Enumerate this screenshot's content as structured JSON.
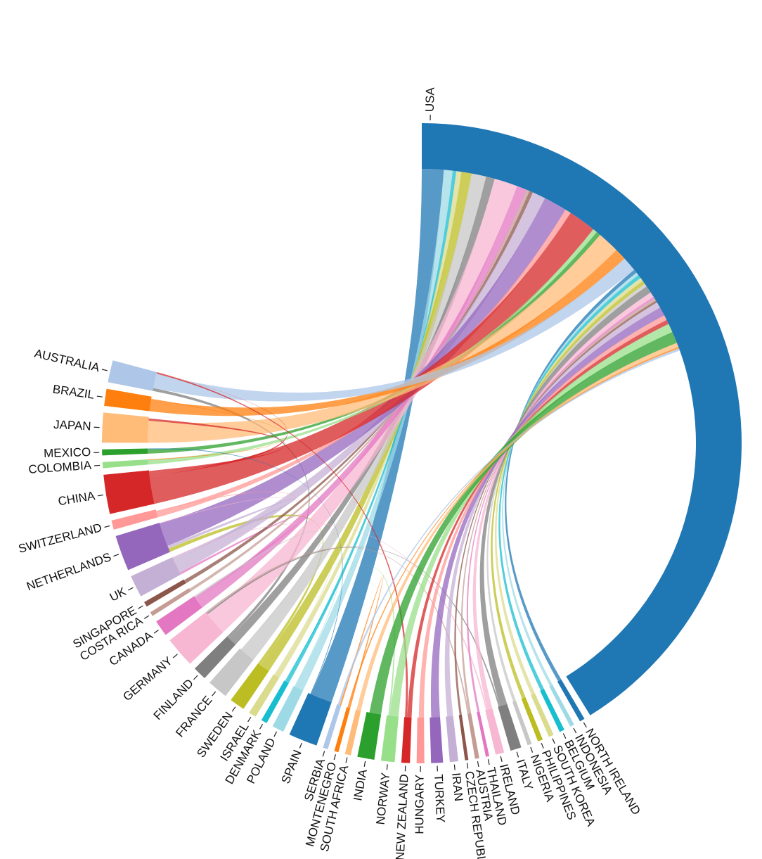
{
  "chart_data": {
    "type": "chord",
    "title": "",
    "colors": {
      "USA": "#1f77b4",
      "NORTH IRELAND": "#1f77b4",
      "INDONESIA": "#9edae5",
      "BELGIUM": "#17becf",
      "SOUTH KOREA": "#dbdb8d",
      "PHILIPPINES": "#bcbd22",
      "NIGERIA": "#c7c7c7",
      "ITALY": "#7f7f7f",
      "IRELAND": "#f7b6d2",
      "THAILAND": "#e377c2",
      "AUSTRIA": "#c49c94",
      "CZECH REPUBLIC": "#8c564b",
      "IRAN": "#c5b0d5",
      "TURKEY": "#9467bd",
      "HUNGARY": "#ff9896",
      "NEW ZEALAND": "#d62728",
      "NORWAY": "#98df8a",
      "INDIA": "#2ca02c",
      "SOUTH AFRICA": "#ffbb78",
      "MONTENEGRO": "#ff7f0e",
      "SERBIA": "#aec7e8",
      "SPAIN": "#1f77b4",
      "POLAND": "#9edae5",
      "DENMARK": "#17becf",
      "ISRAEL": "#dbdb8d",
      "SWEDEN": "#bcbd22",
      "FRANCE": "#c7c7c7",
      "FINLAND": "#7f7f7f",
      "GERMANY": "#f7b6d2",
      "CANADA": "#e377c2",
      "COSTA RICA": "#c49c94",
      "SINGAPORE": "#8c564b",
      "UK": "#c5b0d5",
      "NETHERLANDS": "#9467bd",
      "SWITZERLAND": "#ff9896",
      "CHINA": "#d62728",
      "COLOMBIA": "#98df8a",
      "MEXICO": "#2ca02c",
      "JAPAN": "#ffbb78",
      "BRAZIL": "#ff7f0e",
      "AUSTRALIA": "#aec7e8"
    },
    "countries": [
      {
        "name": "USA",
        "weight": 96.0
      },
      {
        "name": "NORTH IRELAND",
        "weight": 0.6
      },
      {
        "name": "INDONESIA",
        "weight": 0.5
      },
      {
        "name": "BELGIUM",
        "weight": 0.6
      },
      {
        "name": "SOUTH KOREA",
        "weight": 0.6
      },
      {
        "name": "PHILIPPINES",
        "weight": 0.6
      },
      {
        "name": "NIGERIA",
        "weight": 0.5
      },
      {
        "name": "ITALY",
        "weight": 1.3
      },
      {
        "name": "IRELAND",
        "weight": 1.0
      },
      {
        "name": "THAILAND",
        "weight": 0.4
      },
      {
        "name": "AUSTRIA",
        "weight": 0.5
      },
      {
        "name": "CZECH REPUBLIC",
        "weight": 0.4
      },
      {
        "name": "IRAN",
        "weight": 1.0
      },
      {
        "name": "TURKEY",
        "weight": 1.4
      },
      {
        "name": "HUNGARY",
        "weight": 0.9
      },
      {
        "name": "NEW ZEALAND",
        "weight": 1.0
      },
      {
        "name": "NORWAY",
        "weight": 1.6
      },
      {
        "name": "INDIA",
        "weight": 2.0
      },
      {
        "name": "SOUTH AFRICA",
        "weight": 0.7
      },
      {
        "name": "MONTENEGRO",
        "weight": 0.5
      },
      {
        "name": "SERBIA",
        "weight": 0.6
      },
      {
        "name": "SPAIN",
        "weight": 3.4
      },
      {
        "name": "POLAND",
        "weight": 1.4
      },
      {
        "name": "DENMARK",
        "weight": 0.7
      },
      {
        "name": "ISRAEL",
        "weight": 0.9
      },
      {
        "name": "SWEDEN",
        "weight": 1.8
      },
      {
        "name": "FRANCE",
        "weight": 2.4
      },
      {
        "name": "FINLAND",
        "weight": 1.6
      },
      {
        "name": "GERMANY",
        "weight": 3.6
      },
      {
        "name": "CANADA",
        "weight": 1.9
      },
      {
        "name": "COSTA RICA",
        "weight": 0.5
      },
      {
        "name": "SINGAPORE",
        "weight": 0.6
      },
      {
        "name": "UK",
        "weight": 2.6
      },
      {
        "name": "NETHERLANDS",
        "weight": 4.2
      },
      {
        "name": "SWITZERLAND",
        "weight": 1.1
      },
      {
        "name": "CHINA",
        "weight": 4.6
      },
      {
        "name": "COLOMBIA",
        "weight": 0.7
      },
      {
        "name": "MEXICO",
        "weight": 0.7
      },
      {
        "name": "JAPAN",
        "weight": 3.5
      },
      {
        "name": "BRAZIL",
        "weight": 2.0
      },
      {
        "name": "AUSTRALIA",
        "weight": 2.6
      }
    ],
    "links": [
      {
        "source": "SPAIN",
        "target": "USA",
        "value": 3.0
      },
      {
        "source": "POLAND",
        "target": "USA",
        "value": 1.2
      },
      {
        "source": "DENMARK",
        "target": "USA",
        "value": 0.5
      },
      {
        "source": "ISRAEL",
        "target": "USA",
        "value": 0.7
      },
      {
        "source": "SWEDEN",
        "target": "USA",
        "value": 1.4
      },
      {
        "source": "SWEDEN",
        "target": "NETHERLANDS",
        "value": 0.5
      },
      {
        "source": "FRANCE",
        "target": "USA",
        "value": 2.0
      },
      {
        "source": "FINLAND",
        "target": "USA",
        "value": 1.2
      },
      {
        "source": "FINLAND",
        "target": "AUSTRALIA",
        "value": 0.4
      },
      {
        "source": "GERMANY",
        "target": "USA",
        "value": 3.2
      },
      {
        "source": "CANADA",
        "target": "USA",
        "value": 1.4
      },
      {
        "source": "CANADA",
        "target": "UK",
        "value": 0.3
      },
      {
        "source": "COSTA RICA",
        "target": "USA",
        "value": 0.4
      },
      {
        "source": "SINGAPORE",
        "target": "USA",
        "value": 0.5
      },
      {
        "source": "UK",
        "target": "USA",
        "value": 1.8
      },
      {
        "source": "UK",
        "target": "NETHERLANDS",
        "value": 0.4
      },
      {
        "source": "NETHERLANDS",
        "target": "USA",
        "value": 3.2
      },
      {
        "source": "SWITZERLAND",
        "target": "USA",
        "value": 0.8
      },
      {
        "source": "CHINA",
        "target": "USA",
        "value": 3.8
      },
      {
        "source": "COLOMBIA",
        "target": "USA",
        "value": 0.6
      },
      {
        "source": "MEXICO",
        "target": "USA",
        "value": 0.6
      },
      {
        "source": "JAPAN",
        "target": "USA",
        "value": 3.0
      },
      {
        "source": "BRAZIL",
        "target": "USA",
        "value": 1.6
      },
      {
        "source": "AUSTRALIA",
        "target": "USA",
        "value": 2.0
      },
      {
        "source": "NORTH IRELAND",
        "target": "USA",
        "value": 0.5
      },
      {
        "source": "INDONESIA",
        "target": "USA",
        "value": 0.4
      },
      {
        "source": "BELGIUM",
        "target": "USA",
        "value": 0.5
      },
      {
        "source": "SOUTH KOREA",
        "target": "USA",
        "value": 0.5
      },
      {
        "source": "PHILIPPINES",
        "target": "USA",
        "value": 0.5
      },
      {
        "source": "NIGERIA",
        "target": "USA",
        "value": 0.4
      },
      {
        "source": "ITALY",
        "target": "USA",
        "value": 1.0
      },
      {
        "source": "ITALY",
        "target": "GERMANY",
        "value": 0.2
      },
      {
        "source": "IRELAND",
        "target": "USA",
        "value": 0.7
      },
      {
        "source": "IRELAND",
        "target": "UK",
        "value": 0.2
      },
      {
        "source": "THAILAND",
        "target": "USA",
        "value": 0.3
      },
      {
        "source": "AUSTRIA",
        "target": "USA",
        "value": 0.3
      },
      {
        "source": "AUSTRIA",
        "target": "GERMANY",
        "value": 0.2
      },
      {
        "source": "CZECH REPUBLIC",
        "target": "USA",
        "value": 0.3
      },
      {
        "source": "IRAN",
        "target": "USA",
        "value": 0.8
      },
      {
        "source": "TURKEY",
        "target": "USA",
        "value": 1.2
      },
      {
        "source": "HUNGARY",
        "target": "USA",
        "value": 0.7
      },
      {
        "source": "NEW ZEALAND",
        "target": "USA",
        "value": 0.6
      },
      {
        "source": "NEW ZEALAND",
        "target": "AUSTRALIA",
        "value": 0.3
      },
      {
        "source": "NORWAY",
        "target": "USA",
        "value": 1.2
      },
      {
        "source": "NORWAY",
        "target": "SWEDEN",
        "value": 0.2
      },
      {
        "source": "INDIA",
        "target": "USA",
        "value": 1.6
      },
      {
        "source": "SOUTH AFRICA",
        "target": "USA",
        "value": 0.6
      },
      {
        "source": "MONTENEGRO",
        "target": "SERBIA",
        "value": 0.2
      },
      {
        "source": "MONTENEGRO",
        "target": "USA",
        "value": 0.2
      },
      {
        "source": "SERBIA",
        "target": "USA",
        "value": 0.3
      },
      {
        "source": "GERMANY",
        "target": "NETHERLANDS",
        "value": 0.3
      },
      {
        "source": "CHINA",
        "target": "AUSTRALIA",
        "value": 0.4
      },
      {
        "source": "CHINA",
        "target": "JAPAN",
        "value": 0.3
      },
      {
        "source": "FRANCE",
        "target": "CANADA",
        "value": 0.2
      },
      {
        "source": "POLAND",
        "target": "GERMANY",
        "value": 0.1
      },
      {
        "source": "ISRAEL",
        "target": "GERMANY",
        "value": 0.1
      },
      {
        "source": "DENMARK",
        "target": "SWEDEN",
        "value": 0.1
      },
      {
        "source": "BRAZIL",
        "target": "COLOMBIA",
        "value": 0.1
      },
      {
        "source": "SPAIN",
        "target": "MEXICO",
        "value": 0.1
      },
      {
        "source": "SWITZERLAND",
        "target": "GERMANY",
        "value": 0.1
      }
    ]
  }
}
